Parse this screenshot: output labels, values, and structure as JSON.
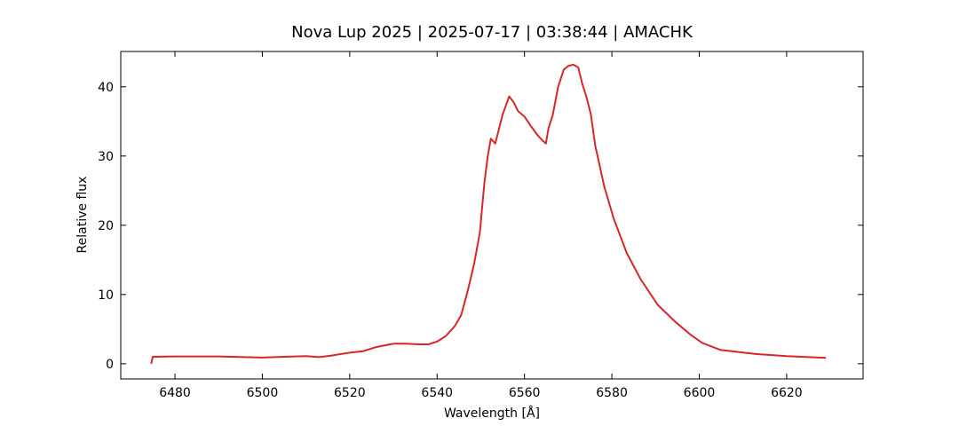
{
  "chart_data": {
    "type": "line",
    "title": "Nova Lup 2025 | 2025-07-17 | 03:38:44 | AMACHK",
    "x_label": "Wavelength [Å]",
    "y_label": "Relative flux",
    "xlim": [
      6467.6,
      6637.5
    ],
    "ylim": [
      -2.2,
      45.1
    ],
    "xticks": [
      6480,
      6500,
      6520,
      6540,
      6560,
      6580,
      6600,
      6620
    ],
    "yticks": [
      0,
      10,
      20,
      30,
      40
    ],
    "series": [
      {
        "name": "Relative flux",
        "color": "#d62728",
        "x": [
          6474.6,
          6474.9,
          6480,
          6490,
          6500,
          6505,
          6510,
          6513,
          6516,
          6520,
          6523,
          6526,
          6530,
          6533,
          6536,
          6538,
          6540,
          6542,
          6544,
          6545.5,
          6547,
          6548.5,
          6549.8,
          6550.8,
          6551.6,
          6552.3,
          6553.3,
          6554,
          6555,
          6556.5,
          6557.5,
          6558.5,
          6560,
          6561.5,
          6563,
          6564.2,
          6564.9,
          6565.5,
          6566.5,
          6567.7,
          6569,
          6570,
          6571.2,
          6572.3,
          6573.2,
          6574.2,
          6575.2,
          6576.2,
          6578.3,
          6580.4,
          6583.4,
          6586.5,
          6590.5,
          6594.6,
          6598,
          6600.7,
          6604.8,
          6612.9,
          6620,
          6629
        ],
        "values": [
          0,
          1.0,
          1.05,
          1.05,
          0.9,
          1.0,
          1.1,
          0.95,
          1.2,
          1.6,
          1.8,
          2.4,
          2.9,
          2.9,
          2.8,
          2.8,
          3.2,
          4.0,
          5.4,
          7.0,
          10.5,
          14.5,
          19.0,
          26.0,
          30.0,
          32.5,
          31.8,
          33.5,
          36.0,
          38.6,
          37.8,
          36.5,
          35.7,
          34.3,
          33.0,
          32.2,
          31.8,
          34.0,
          36.0,
          40.0,
          42.5,
          43.0,
          43.2,
          42.8,
          40.5,
          38.5,
          36.0,
          31.5,
          25.5,
          21.0,
          16.0,
          12.3,
          8.5,
          6.0,
          4.2,
          3.0,
          2.0,
          1.4,
          1.1,
          0.85
        ]
      }
    ]
  }
}
